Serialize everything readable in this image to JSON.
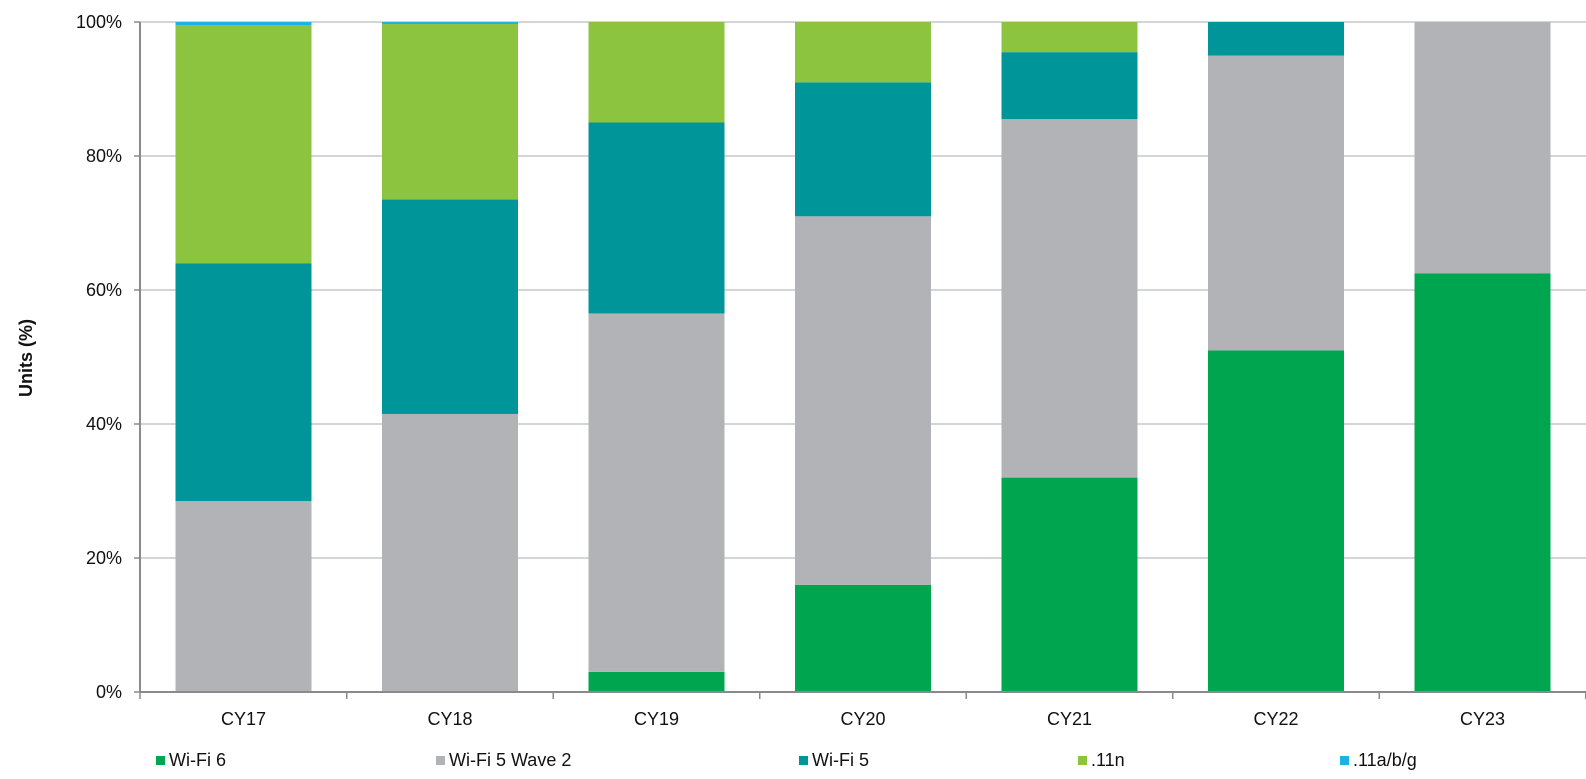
{
  "chart_data": {
    "type": "bar",
    "stacked": true,
    "title": "",
    "xlabel": "",
    "ylabel": "Units (%)",
    "ylim": [
      0,
      100
    ],
    "yticks": [
      "0%",
      "20%",
      "40%",
      "60%",
      "80%",
      "100%"
    ],
    "grid": true,
    "legend_position": "bottom",
    "categories": [
      "CY17",
      "CY18",
      "CY19",
      "CY20",
      "CY21",
      "CY22",
      "CY23"
    ],
    "series": [
      {
        "name": "Wi-Fi 6",
        "color": "#00a64f",
        "values": [
          0,
          0,
          3,
          16,
          32,
          51,
          62.5
        ]
      },
      {
        "name": "Wi-Fi 5 Wave 2",
        "color": "#b2b3b7",
        "values": [
          28.5,
          41.5,
          53.5,
          55,
          53.5,
          44,
          37.5
        ]
      },
      {
        "name": "Wi-Fi 5",
        "color": "#009598",
        "values": [
          35.5,
          32,
          28.5,
          20,
          10,
          5,
          0
        ]
      },
      {
        "name": ".11n",
        "color": "#8cc43f",
        "values": [
          35.5,
          26.2,
          15,
          9,
          4.5,
          0,
          0
        ]
      },
      {
        "name": ".11a/b/g",
        "color": "#1eb1e6",
        "values": [
          0.5,
          0.3,
          0,
          0,
          0,
          0,
          0
        ]
      }
    ]
  }
}
